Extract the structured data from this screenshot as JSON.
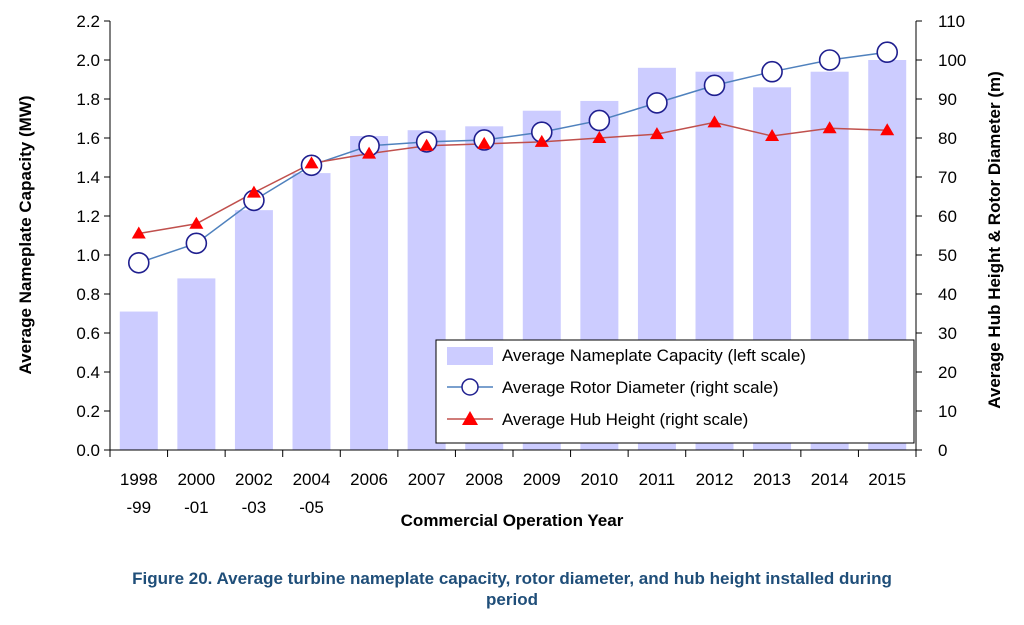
{
  "caption": {
    "line1": "Figure 20. Average turbine nameplate capacity, rotor diameter, and hub height installed during",
    "line2": "period"
  },
  "chart_data": {
    "type": "bar",
    "title": "",
    "xlabel": "Commercial Operation Year",
    "ylabel": "Average Nameplate Capacity (MW)",
    "y2label": "Average Hub Height & Rotor Diameter (m)",
    "ylim": [
      0,
      2.2
    ],
    "y2lim": [
      0,
      110
    ],
    "yticks": [
      "0.0",
      "0.2",
      "0.4",
      "0.6",
      "0.8",
      "1.0",
      "1.2",
      "1.4",
      "1.6",
      "1.8",
      "2.0",
      "2.2"
    ],
    "y2ticks": [
      "0",
      "10",
      "20",
      "30",
      "40",
      "50",
      "60",
      "70",
      "80",
      "90",
      "100",
      "110"
    ],
    "categories": [
      {
        "line1": "1998",
        "line2": "-99"
      },
      {
        "line1": "2000",
        "line2": "-01"
      },
      {
        "line1": "2002",
        "line2": "-03"
      },
      {
        "line1": "2004",
        "line2": "-05"
      },
      {
        "line1": "2006",
        "line2": ""
      },
      {
        "line1": "2007",
        "line2": ""
      },
      {
        "line1": "2008",
        "line2": ""
      },
      {
        "line1": "2009",
        "line2": ""
      },
      {
        "line1": "2010",
        "line2": ""
      },
      {
        "line1": "2011",
        "line2": ""
      },
      {
        "line1": "2012",
        "line2": ""
      },
      {
        "line1": "2013",
        "line2": ""
      },
      {
        "line1": "2014",
        "line2": ""
      },
      {
        "line1": "2015",
        "line2": ""
      }
    ],
    "series": [
      {
        "name": "Average Nameplate Capacity (left scale)",
        "kind": "bar",
        "axis": "left",
        "color": "#ccccff",
        "values": [
          0.71,
          0.88,
          1.23,
          1.42,
          1.61,
          1.64,
          1.66,
          1.74,
          1.79,
          1.96,
          1.94,
          1.86,
          1.94,
          2.0
        ]
      },
      {
        "name": "Average Rotor Diameter (right scale)",
        "kind": "line",
        "axis": "right",
        "color": "#4f81bd",
        "marker": "circle",
        "values": [
          48,
          53,
          64,
          73,
          78,
          79,
          79.5,
          81.5,
          84.5,
          89,
          93.5,
          97,
          100,
          102
        ]
      },
      {
        "name": "Average Hub Height (right scale)",
        "kind": "line",
        "axis": "right",
        "color": "#c0504d",
        "marker": "triangle",
        "values": [
          55.5,
          58,
          66,
          73.5,
          76,
          78,
          78.5,
          79,
          80,
          81,
          84,
          80.5,
          82.5,
          82
        ]
      }
    ],
    "legend": "bottom-right",
    "grid": false
  }
}
